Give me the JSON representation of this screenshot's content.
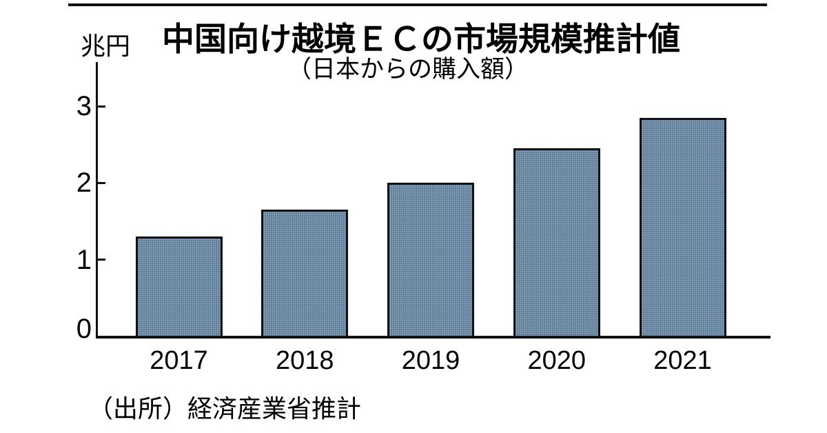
{
  "page": {
    "background_color": "#ffffff",
    "top_rule_color": "#111111"
  },
  "chart_data": {
    "type": "bar",
    "title": "中国向け越境ＥＣの市場規模推計値",
    "subtitle": "（日本からの購入額）",
    "unit_label": "兆円",
    "source": "（出所）経済産業省推計",
    "categories": [
      "2017",
      "2018",
      "2019",
      "2020",
      "2021"
    ],
    "values": [
      1.3,
      1.65,
      2.0,
      2.45,
      2.85
    ],
    "yticks": [
      0,
      1,
      2,
      3
    ],
    "ylim": [
      0,
      3.57
    ],
    "grid": false,
    "legend": "none",
    "bar_fill_style": "halftone-dots",
    "bar_color": "#4d7190",
    "bar_dot_color": "#9fb3c2",
    "bar_border_color": "#111111",
    "axis_color": "#111111",
    "text_color": "#000000"
  }
}
